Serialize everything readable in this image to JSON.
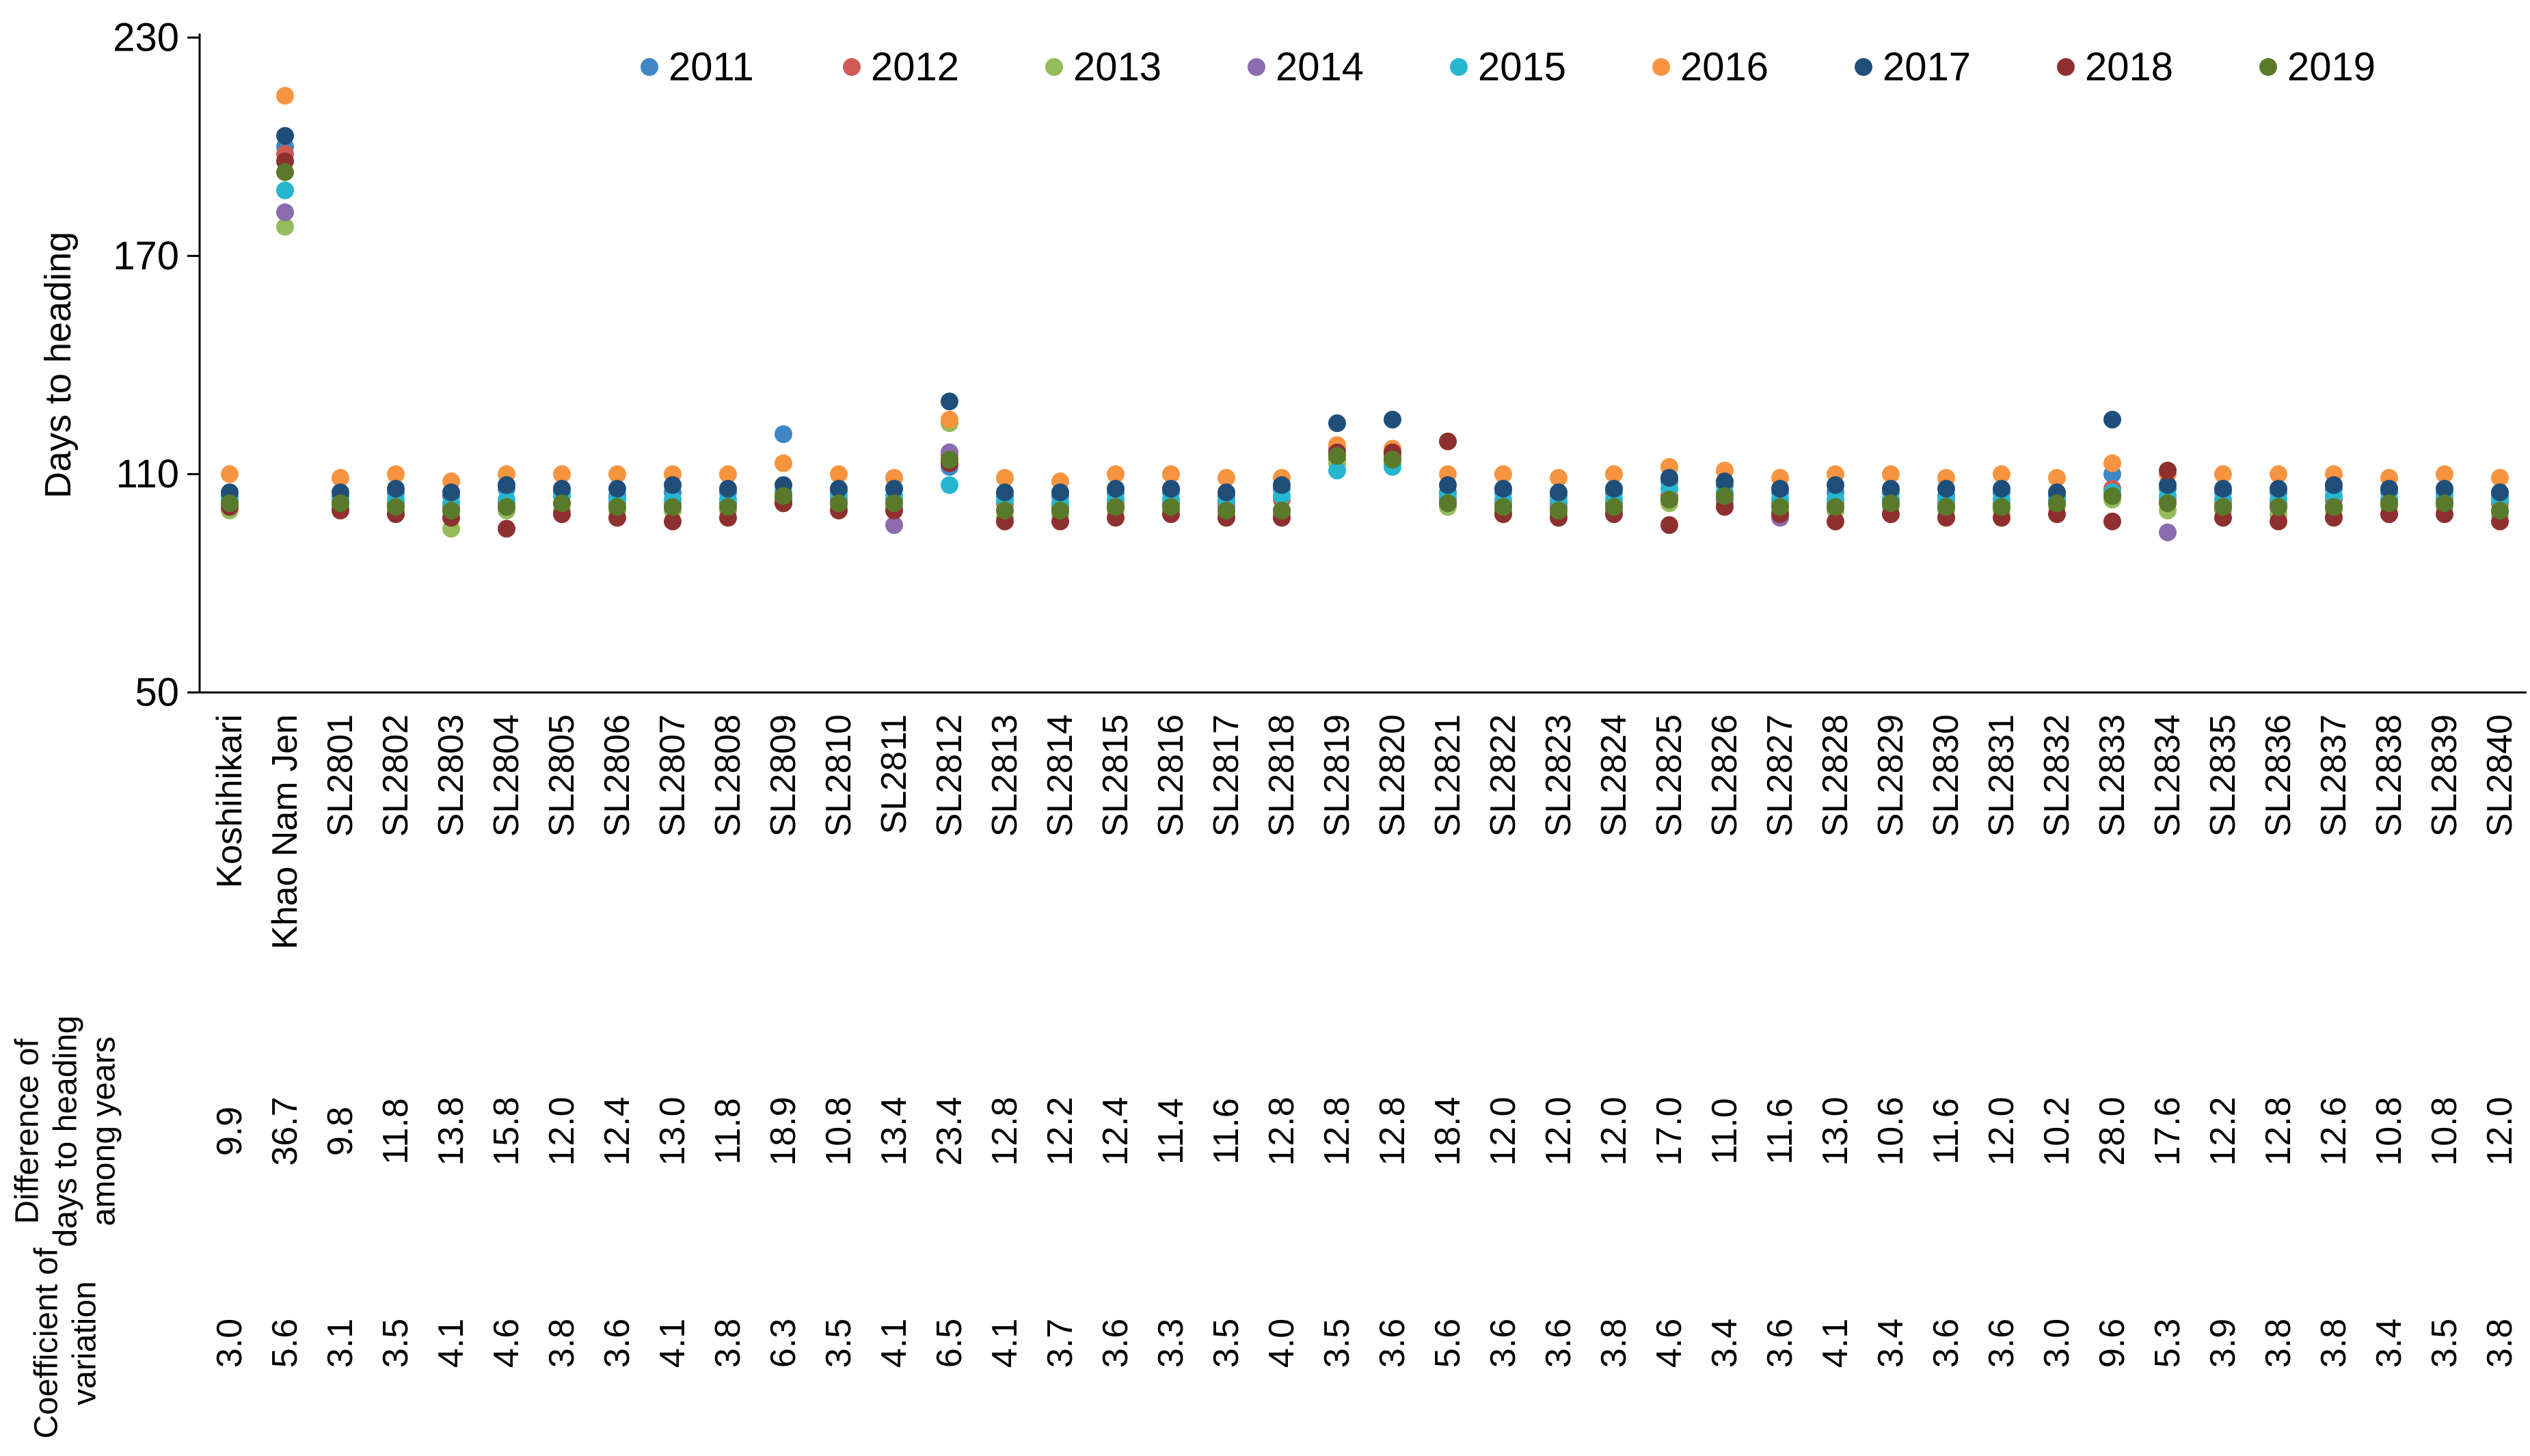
{
  "chart_data": {
    "type": "scatter",
    "title": "",
    "ylabel": "Days to heading",
    "ylim": [
      50,
      230
    ],
    "yticks": [
      230,
      170,
      110,
      50
    ],
    "legend_position": "top",
    "grid": false,
    "marker": "circle",
    "categories": [
      "Koshihikari",
      "Khao Nam Jen",
      "SL2801",
      "SL2802",
      "SL2803",
      "SL2804",
      "SL2805",
      "SL2806",
      "SL2807",
      "SL2808",
      "SL2809",
      "SL2810",
      "SL2811",
      "SL2812",
      "SL2813",
      "SL2814",
      "SL2815",
      "SL2816",
      "SL2817",
      "SL2818",
      "SL2819",
      "SL2820",
      "SL2821",
      "SL2822",
      "SL2823",
      "SL2824",
      "SL2825",
      "SL2826",
      "SL2827",
      "SL2828",
      "SL2829",
      "SL2830",
      "SL2831",
      "SL2832",
      "SL2833",
      "SL2834",
      "SL2835",
      "SL2836",
      "SL2837",
      "SL2838",
      "SL2839",
      "SL2840"
    ],
    "series": [
      {
        "name": "2011",
        "color": "#3E86C6",
        "values": [
          104,
          200,
          104,
          105,
          104,
          106,
          105,
          104,
          105,
          105,
          121,
          105,
          106,
          112,
          104,
          104,
          105,
          105,
          104,
          106,
          117,
          116,
          105,
          105,
          104,
          105,
          108,
          107,
          105,
          105,
          105,
          104,
          105,
          104,
          110,
          106,
          105,
          105,
          106,
          105,
          105,
          104
        ]
      },
      {
        "name": "2012",
        "color": "#CF5B56",
        "values": [
          102,
          198,
          102,
          102,
          101,
          102,
          102,
          102,
          102,
          102,
          104,
          103,
          103,
          115,
          102,
          101,
          102,
          102,
          102,
          103,
          114,
          114,
          103,
          102,
          102,
          102,
          104,
          104,
          102,
          102,
          103,
          102,
          102,
          102,
          106,
          103,
          102,
          102,
          103,
          103,
          103,
          102
        ]
      },
      {
        "name": "2013",
        "color": "#94BC5C",
        "values": [
          100,
          178,
          101,
          100,
          95,
          100,
          100,
          100,
          100,
          100,
          102,
          101,
          101,
          124,
          98,
          99,
          100,
          100,
          99,
          99,
          113,
          113,
          101,
          100,
          99,
          100,
          102,
          102,
          100,
          100,
          101,
          100,
          100,
          101,
          103,
          100,
          100,
          99,
          100,
          101,
          101,
          99
        ]
      },
      {
        "name": "2014",
        "color": "#8C6BAE",
        "values": [
          102,
          182,
          102,
          102,
          100,
          101,
          102,
          101,
          101,
          102,
          103,
          102,
          96,
          116,
          100,
          100,
          101,
          102,
          101,
          100,
          115,
          115,
          102,
          101,
          101,
          101,
          103,
          103,
          98,
          101,
          102,
          101,
          101,
          102,
          104,
          94,
          101,
          101,
          101,
          102,
          102,
          100
        ]
      },
      {
        "name": "2015",
        "color": "#27B6CF",
        "values": [
          103,
          188,
          103,
          103,
          102,
          103,
          104,
          103,
          103,
          103,
          105,
          104,
          104,
          107,
          103,
          102,
          103,
          103,
          103,
          104,
          111,
          112,
          104,
          103,
          103,
          103,
          106,
          105,
          103,
          103,
          103,
          103,
          103,
          103,
          105,
          104,
          103,
          103,
          104,
          103,
          104,
          103
        ]
      },
      {
        "name": "2016",
        "color": "#F79440",
        "values": [
          110,
          214,
          109,
          110,
          108,
          110,
          110,
          110,
          110,
          110,
          113,
          110,
          109,
          125,
          109,
          108,
          110,
          110,
          109,
          109,
          118,
          117,
          110,
          110,
          109,
          110,
          112,
          111,
          109,
          110,
          110,
          109,
          110,
          109,
          113,
          110,
          110,
          110,
          110,
          109,
          110,
          109
        ]
      },
      {
        "name": "2017",
        "color": "#1F4E79",
        "values": [
          105,
          203,
          105,
          106,
          105,
          107,
          106,
          106,
          107,
          106,
          107,
          106,
          106,
          130,
          105,
          105,
          106,
          106,
          105,
          107,
          124,
          125,
          107,
          106,
          105,
          106,
          109,
          108,
          106,
          107,
          106,
          106,
          106,
          105,
          125,
          107,
          106,
          106,
          107,
          106,
          106,
          105
        ]
      },
      {
        "name": "2018",
        "color": "#8E3030",
        "values": [
          101,
          196,
          100,
          99,
          98,
          95,
          99,
          98,
          97,
          98,
          102,
          100,
          100,
          113,
          97,
          97,
          98,
          99,
          98,
          98,
          116,
          116,
          119,
          99,
          98,
          99,
          96,
          101,
          99,
          97,
          99,
          98,
          98,
          99,
          97,
          111,
          98,
          97,
          98,
          99,
          99,
          97
        ]
      },
      {
        "name": "2019",
        "color": "#5A7A2B",
        "values": [
          102,
          193,
          102,
          101,
          100,
          101,
          102,
          101,
          101,
          101,
          104,
          102,
          102,
          114,
          100,
          100,
          101,
          101,
          100,
          100,
          115,
          114,
          102,
          101,
          100,
          101,
          103,
          104,
          101,
          101,
          102,
          101,
          101,
          102,
          104,
          102,
          101,
          101,
          101,
          102,
          102,
          100
        ]
      }
    ],
    "rows": [
      {
        "label_lines": [
          "Difference of",
          "days to heading",
          "among years"
        ],
        "values": [
          "9.9",
          "36.7",
          "9.8",
          "11.8",
          "13.8",
          "15.8",
          "12.0",
          "12.4",
          "13.0",
          "11.8",
          "18.9",
          "10.8",
          "13.4",
          "23.4",
          "12.8",
          "12.2",
          "12.4",
          "11.4",
          "11.6",
          "12.8",
          "12.8",
          "12.8",
          "18.4",
          "12.0",
          "12.0",
          "12.0",
          "17.0",
          "11.0",
          "11.6",
          "13.0",
          "10.6",
          "11.6",
          "12.0",
          "10.2",
          "28.0",
          "17.6",
          "12.2",
          "12.8",
          "12.6",
          "10.8",
          "10.8",
          "12.0"
        ]
      },
      {
        "label_lines": [
          "Coefficient of",
          "variation"
        ],
        "values": [
          "3.0",
          "5.6",
          "3.1",
          "3.5",
          "4.1",
          "4.6",
          "3.8",
          "3.6",
          "4.1",
          "3.8",
          "6.3",
          "3.5",
          "4.1",
          "6.5",
          "4.1",
          "3.7",
          "3.6",
          "3.3",
          "3.5",
          "4.0",
          "3.5",
          "3.6",
          "5.6",
          "3.6",
          "3.6",
          "3.8",
          "4.6",
          "3.4",
          "3.6",
          "4.1",
          "3.4",
          "3.6",
          "3.6",
          "3.0",
          "9.6",
          "5.3",
          "3.9",
          "3.8",
          "3.8",
          "3.4",
          "3.5",
          "3.8"
        ]
      }
    ]
  }
}
